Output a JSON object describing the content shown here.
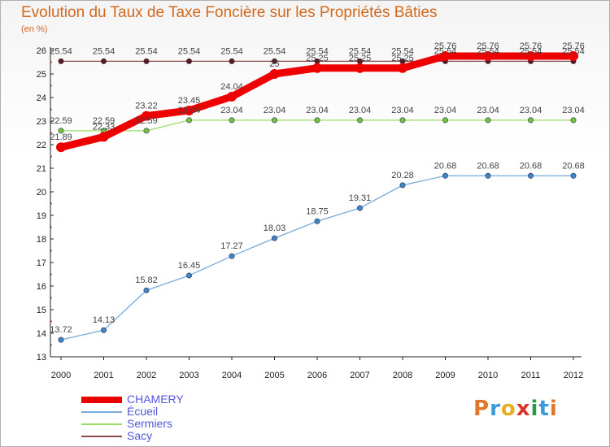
{
  "header": {
    "title": "Evolution du Taux de Taxe Foncière sur les Propriétés Bâties",
    "subtitle": "(en %)"
  },
  "brand": {
    "letters": [
      "P",
      "r",
      "o",
      "x",
      "i",
      "t",
      "i"
    ],
    "colors": [
      "#e0762a",
      "#3c9ad8",
      "#e8b020",
      "#d9342b",
      "#2b9a48",
      "#3c9ad8",
      "#e0762a"
    ]
  },
  "chart_data": {
    "type": "line",
    "title": "Evolution du Taux de Taxe Foncière sur les Propriétés Bâties",
    "subtitle": "(en %)",
    "xlabel": "",
    "ylabel": "",
    "categories": [
      2000,
      2001,
      2002,
      2003,
      2004,
      2005,
      2006,
      2007,
      2008,
      2009,
      2010,
      2011,
      2012
    ],
    "ylim": [
      13,
      26
    ],
    "yticks": [
      13,
      14,
      15,
      16,
      17,
      18,
      19,
      20,
      21,
      22,
      23,
      24,
      25,
      26
    ],
    "grid": false,
    "legend_position": "bottom-left",
    "series": [
      {
        "name": "Sacy",
        "color": "#8b4a4a",
        "marker_color": "#5a1a1a",
        "values": [
          25.54,
          25.54,
          25.54,
          25.54,
          25.54,
          25.54,
          25.54,
          25.54,
          25.54,
          25.54,
          25.54,
          25.54,
          25.54
        ],
        "labels": [
          "25.54",
          "25.54",
          "25.54",
          "25.54",
          "25.54",
          "25.54",
          "25.54",
          "25.54",
          "25.54",
          "25.54",
          "25.54",
          "25.54",
          "25.54"
        ]
      },
      {
        "name": "Sermiers",
        "color": "#99dd66",
        "marker_color": "#6fc43a",
        "values": [
          22.59,
          22.59,
          22.59,
          23.04,
          23.04,
          23.04,
          23.04,
          23.04,
          23.04,
          23.04,
          23.04,
          23.04,
          23.04
        ],
        "labels": [
          "22.59",
          "22.59",
          "22.59",
          "23.04",
          "23.04",
          "23.04",
          "23.04",
          "23.04",
          "23.04",
          "23.04",
          "23.04",
          "23.04",
          "23.04"
        ]
      },
      {
        "name": "Écueil",
        "color": "#77aadd",
        "marker_color": "#3d85c6",
        "values": [
          13.72,
          14.13,
          15.82,
          16.45,
          17.27,
          18.03,
          18.75,
          19.31,
          20.28,
          20.68,
          20.68,
          20.68,
          20.68
        ],
        "labels": [
          "13.72",
          "14.13",
          "15.82",
          "16.45",
          "17.27",
          "18.03",
          "18.75",
          "19.31",
          "20.28",
          "20.68",
          "20.68",
          "20.68",
          "20.68"
        ]
      },
      {
        "name": "CHAMERY",
        "color": "#ee0000",
        "marker_color": "#ee0000",
        "values": [
          21.89,
          22.33,
          23.22,
          23.45,
          24.04,
          25,
          25.25,
          25.25,
          25.25,
          25.76,
          25.76,
          25.76,
          25.76
        ],
        "labels": [
          "21.89",
          "22.33",
          "23.22",
          "23.45",
          "24.04",
          "25",
          "25.25",
          "25.25",
          "25.25",
          "25.76",
          "25.76",
          "25.76",
          "25.76"
        ]
      }
    ],
    "legend_order": [
      "CHAMERY",
      "Écueil",
      "Sermiers",
      "Sacy"
    ]
  }
}
